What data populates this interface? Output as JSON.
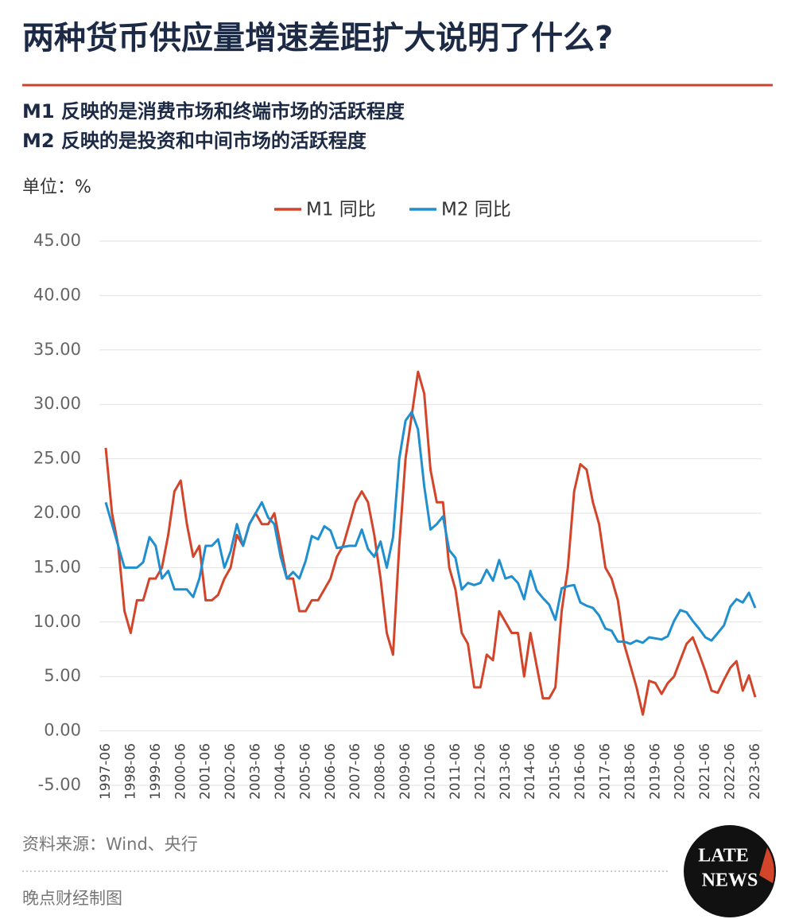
{
  "chart_data": {
    "type": "line",
    "title": "两种货币供应量增速差距扩大说明了什么?",
    "subtitle": [
      "M1 反映的是消费市场和终端市场的活跃程度",
      "M2 反映的是投资和中间市场的活跃程度"
    ],
    "y_label": "单位：%",
    "source": "资料来源：Wind、央行",
    "credit": "晚点财经制图",
    "logo": [
      "LATE",
      "NEWS"
    ],
    "x": [
      "1997-06",
      "1997-09",
      "1997-12",
      "1998-03",
      "1998-06",
      "1998-09",
      "1998-12",
      "1999-03",
      "1999-06",
      "1999-09",
      "1999-12",
      "2000-03",
      "2000-06",
      "2000-09",
      "2000-12",
      "2001-03",
      "2001-06",
      "2001-09",
      "2001-12",
      "2002-03",
      "2002-06",
      "2002-09",
      "2002-12",
      "2003-03",
      "2003-06",
      "2003-09",
      "2003-12",
      "2004-03",
      "2004-06",
      "2004-09",
      "2004-12",
      "2005-03",
      "2005-06",
      "2005-09",
      "2005-12",
      "2006-03",
      "2006-06",
      "2006-09",
      "2006-12",
      "2007-03",
      "2007-06",
      "2007-09",
      "2007-12",
      "2008-03",
      "2008-06",
      "2008-09",
      "2008-12",
      "2009-03",
      "2009-06",
      "2009-09",
      "2009-12",
      "2010-03",
      "2010-06",
      "2010-09",
      "2010-12",
      "2011-03",
      "2011-06",
      "2011-09",
      "2011-12",
      "2012-03",
      "2012-06",
      "2012-09",
      "2012-12",
      "2013-03",
      "2013-06",
      "2013-09",
      "2013-12",
      "2014-03",
      "2014-06",
      "2014-09",
      "2014-12",
      "2015-03",
      "2015-06",
      "2015-09",
      "2015-12",
      "2016-03",
      "2016-06",
      "2016-09",
      "2016-12",
      "2017-03",
      "2017-06",
      "2017-09",
      "2017-12",
      "2018-03",
      "2018-06",
      "2018-09",
      "2018-12",
      "2019-03",
      "2019-06",
      "2019-09",
      "2019-12",
      "2020-03",
      "2020-06",
      "2020-09",
      "2020-12",
      "2021-03",
      "2021-06",
      "2021-09",
      "2021-12",
      "2022-03",
      "2022-06",
      "2022-09",
      "2022-12",
      "2023-03",
      "2023-06"
    ],
    "series": [
      {
        "name": "M1 同比",
        "color": "#d2452a",
        "values": [
          26,
          20,
          17,
          11,
          9,
          12,
          12,
          14,
          14,
          15,
          18,
          22,
          23,
          19,
          16,
          17,
          12,
          12,
          12.5,
          14,
          15,
          18,
          17,
          19,
          20,
          19,
          19,
          20,
          17,
          14,
          14,
          11,
          11,
          12,
          12,
          13,
          14,
          16,
          17,
          19,
          21,
          22,
          21,
          18,
          14,
          9,
          7,
          17,
          25,
          29,
          33,
          31,
          24,
          21,
          21,
          15,
          13,
          9,
          8,
          4,
          4,
          7,
          6.5,
          11,
          10,
          9,
          9,
          5,
          9,
          6,
          3,
          3,
          4,
          11,
          15,
          22,
          24.5,
          24,
          21,
          19,
          15,
          14,
          12,
          8,
          6,
          4,
          1.5,
          4.6,
          4.4,
          3.4,
          4.4,
          5,
          6.5,
          8,
          8.6,
          7.1,
          5.5,
          3.7,
          3.5,
          4.7,
          5.8,
          6.4,
          3.7,
          5.1,
          3.1
        ]
      },
      {
        "name": "M2 同比",
        "color": "#1f8fcf",
        "values": [
          21,
          19,
          17,
          15,
          15,
          15,
          15.5,
          17.8,
          17,
          14,
          14.7,
          13,
          13,
          13,
          12.3,
          14,
          17,
          17,
          17.6,
          15,
          16.5,
          19,
          17,
          19,
          20,
          21,
          19.6,
          19,
          16,
          14,
          14.6,
          14,
          15.6,
          17.9,
          17.6,
          18.8,
          18.4,
          16.8,
          16.9,
          17,
          17,
          18.5,
          16.7,
          16,
          17.4,
          15,
          17.8,
          25,
          28.5,
          29.3,
          27.7,
          22.5,
          18.5,
          19,
          19.7,
          16.6,
          15.9,
          13,
          13.6,
          13.4,
          13.6,
          14.8,
          13.8,
          15.7,
          14,
          14.2,
          13.6,
          12.1,
          14.7,
          12.9,
          12.2,
          11.6,
          10.2,
          13.1,
          13.3,
          13.4,
          11.8,
          11.5,
          11.3,
          10.6,
          9.4,
          9.2,
          8.2,
          8.2,
          8,
          8.3,
          8.1,
          8.6,
          8.5,
          8.4,
          8.7,
          10.1,
          11.1,
          10.9,
          10.1,
          9.4,
          8.6,
          8.3,
          9,
          9.7,
          11.4,
          12.1,
          11.8,
          12.7,
          11.3
        ]
      }
    ],
    "xlim": [
      "1997-06",
      "2023-06"
    ],
    "xticks": [
      "1997-06",
      "1998-06",
      "1999-06",
      "2000-06",
      "2001-06",
      "2002-06",
      "2003-06",
      "2004-06",
      "2005-06",
      "2006-06",
      "2007-06",
      "2008-06",
      "2009-06",
      "2010-06",
      "2011-06",
      "2012-06",
      "2013-06",
      "2014-06",
      "2015-06",
      "2016-06",
      "2017-06",
      "2018-06",
      "2019-06",
      "2020-06",
      "2021-06",
      "2022-06",
      "2023-06"
    ],
    "ylim": [
      -5,
      45
    ],
    "yticks": [
      {
        "value": -5,
        "label": "-5.00"
      },
      {
        "value": 0,
        "label": "0.00"
      },
      {
        "value": 5,
        "label": "5.00"
      },
      {
        "value": 10,
        "label": "10.00"
      },
      {
        "value": 15,
        "label": "15.00"
      },
      {
        "value": 20,
        "label": "20.00"
      },
      {
        "value": 25,
        "label": "25.00"
      },
      {
        "value": 30,
        "label": "30.00"
      },
      {
        "value": 35,
        "label": "35.00"
      },
      {
        "value": 40,
        "label": "40.00"
      },
      {
        "value": 45,
        "label": "45.00"
      }
    ],
    "grid": true,
    "legend": "top"
  }
}
